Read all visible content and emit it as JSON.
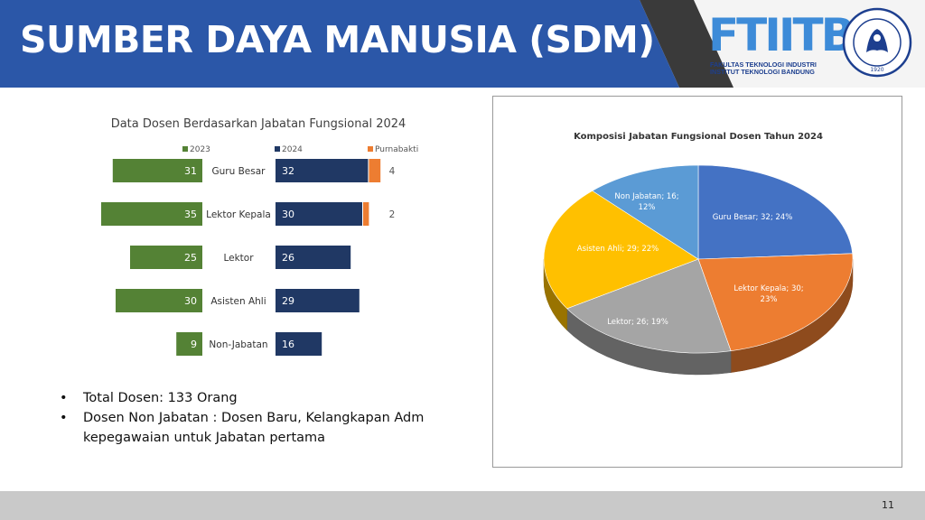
{
  "header": {
    "title": "SUMBER DAYA MANUSIA (SDM)",
    "logo_text": "FTIITB",
    "logo_subtitle_line1": "FAKULTAS TEKNOLOGI INDUSTRI",
    "logo_subtitle_line2": "INSTITUT TEKNOLOGI BANDUNG",
    "seal_text": "INSTITUT TEKNOLOGI BANDUNG",
    "seal_year": "1920",
    "colors": {
      "banner": "#2b57a8",
      "logo_blue": "#3d8bd8",
      "logo_dark": "#1d3f8f"
    }
  },
  "bullets": [
    "Total Dosen: 133 Orang",
    "Dosen Non Jabatan : Dosen Baru, Kelangkapan Adm kepegawaian untuk Jabatan pertama"
  ],
  "footer": {
    "page_number": "11"
  },
  "chart_data": [
    {
      "type": "bar",
      "title": "Data Dosen Berdasarkan Jabatan Fungsional 2024",
      "categories": [
        "Guru Besar",
        "Lektor Kepala",
        "Lektor",
        "Asisten Ahli",
        "Non-Jabatan"
      ],
      "series": [
        {
          "name": "2023",
          "values": [
            31,
            35,
            25,
            30,
            9
          ],
          "color": "#548235"
        },
        {
          "name": "2024",
          "values": [
            32,
            30,
            26,
            29,
            16
          ],
          "color": "#203864"
        },
        {
          "name": "Purnabakti",
          "values": [
            4,
            2,
            0,
            0,
            0
          ],
          "color": "#ed7d31"
        }
      ],
      "legend": "top",
      "grid": false
    },
    {
      "type": "pie",
      "title": "Komposisi Jabatan Fungsional Dosen Tahun 2024",
      "slices": [
        {
          "label": "Guru Besar",
          "value": 32,
          "percent": "24%",
          "text": "Guru Besar; 32; 24%",
          "color": "#4472c4"
        },
        {
          "label": "Lektor Kepala",
          "value": 30,
          "percent": "23%",
          "text_line1": "Lektor Kepala; 30;",
          "text_line2": "23%",
          "color": "#ed7d31"
        },
        {
          "label": "Lektor",
          "value": 26,
          "percent": "19%",
          "text": "Lektor; 26; 19%",
          "color": "#a5a5a5"
        },
        {
          "label": "Asisten Ahli",
          "value": 29,
          "percent": "22%",
          "text": "Asisten Ahli; 29; 22%",
          "color": "#ffc000"
        },
        {
          "label": "Non Jabatan",
          "value": 16,
          "percent": "12%",
          "text_line1": "Non Jabatan; 16;",
          "text_line2": "12%",
          "color": "#5b9bd5"
        }
      ],
      "style": "3d"
    }
  ]
}
